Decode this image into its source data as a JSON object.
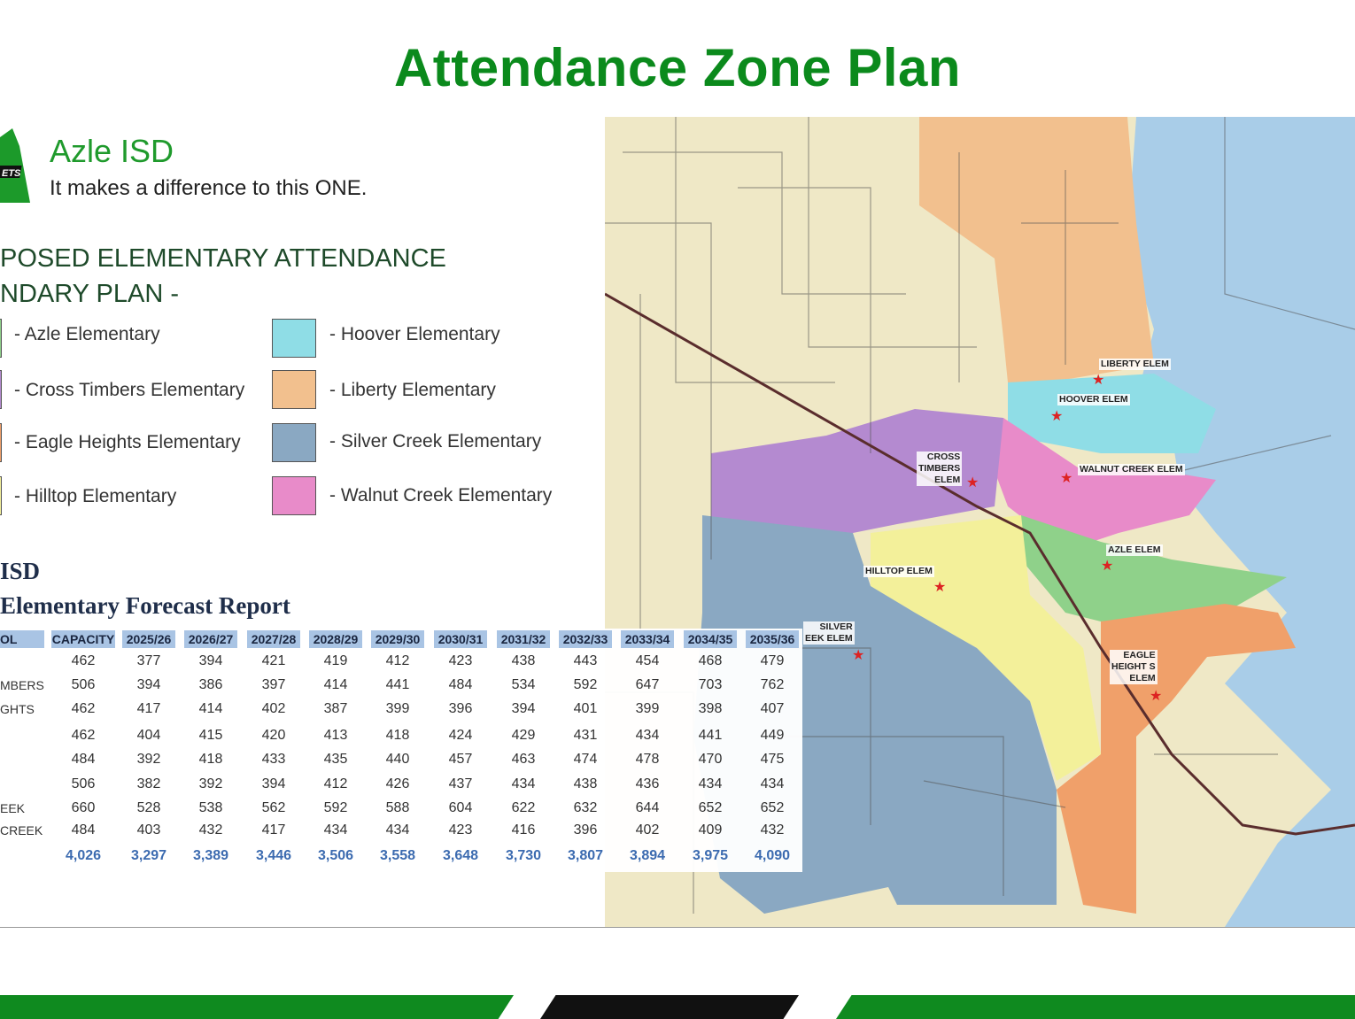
{
  "title": "Attendance Zone Plan",
  "brand": {
    "name": "Azle ISD",
    "tagline": "It makes a difference to this ONE.",
    "logo_text": "ETS"
  },
  "plan_heading": [
    "POSED ELEMENTARY ATTENDANCE",
    "NDARY PLAN -"
  ],
  "legend": [
    {
      "label": "- Azle Elementary",
      "color": "#8fd18a"
    },
    {
      "label": "- Cross Timbers Elementary",
      "color": "#b48ad0"
    },
    {
      "label": "- Eagle Heights Elementary",
      "color": "#f0a06a"
    },
    {
      "label": "- Hilltop Elementary",
      "color": "#f3f09a"
    },
    {
      "label": "- Hoover Elementary",
      "color": "#8fdde6"
    },
    {
      "label": "- Liberty Elementary",
      "color": "#f2c08e"
    },
    {
      "label": "- Silver Creek Elementary",
      "color": "#8aa8c2"
    },
    {
      "label": "- Walnut Creek Elementary",
      "color": "#e88bc9"
    }
  ],
  "report": {
    "line1": "ISD",
    "line2": "Elementary Forecast Report"
  },
  "table": {
    "headers": [
      "OL",
      "CAPACITY",
      "2025/26",
      "2026/27",
      "2027/28",
      "2028/29",
      "2029/30",
      "2030/31",
      "2031/32",
      "2032/33",
      "2033/34",
      "2034/35",
      "2035/36"
    ],
    "rows": [
      {
        "label": "",
        "values": [
          "462",
          "377",
          "394",
          "421",
          "419",
          "412",
          "423",
          "438",
          "443",
          "454",
          "468",
          "479"
        ]
      },
      {
        "label": "MBERS",
        "values": [
          "506",
          "394",
          "386",
          "397",
          "414",
          "441",
          "484",
          "534",
          "592",
          "647",
          "703",
          "762"
        ]
      },
      {
        "label": "GHTS",
        "values": [
          "462",
          "417",
          "414",
          "402",
          "387",
          "399",
          "396",
          "394",
          "401",
          "399",
          "398",
          "407"
        ]
      },
      {
        "label": "",
        "values": [
          "462",
          "404",
          "415",
          "420",
          "413",
          "418",
          "424",
          "429",
          "431",
          "434",
          "441",
          "449"
        ]
      },
      {
        "label": "",
        "values": [
          "484",
          "392",
          "418",
          "433",
          "435",
          "440",
          "457",
          "463",
          "474",
          "478",
          "470",
          "475"
        ]
      },
      {
        "label": "",
        "values": [
          "506",
          "382",
          "392",
          "394",
          "412",
          "426",
          "437",
          "434",
          "438",
          "436",
          "434",
          "434"
        ]
      },
      {
        "label": "EEK",
        "values": [
          "660",
          "528",
          "538",
          "562",
          "592",
          "588",
          "604",
          "622",
          "632",
          "644",
          "652",
          "652"
        ]
      },
      {
        "label": "CREEK",
        "values": [
          "484",
          "403",
          "432",
          "417",
          "434",
          "434",
          "423",
          "416",
          "396",
          "402",
          "409",
          "432"
        ]
      }
    ],
    "totals": [
      "4,026",
      "3,297",
      "3,389",
      "3,446",
      "3,506",
      "3,558",
      "3,648",
      "3,730",
      "3,807",
      "3,894",
      "3,975",
      "4,090"
    ]
  },
  "map_labels": {
    "liberty": "LIBERTY ELEM",
    "hoover": "HOOVER ELEM",
    "cross_timbers": [
      "CROSS",
      "TIMBERS",
      "ELEM"
    ],
    "walnut_creek": "WALNUT CREEK ELEM",
    "azle": "AZLE ELEM",
    "hilltop": "HILLTOP ELEM",
    "silver_creek": [
      "SILVER",
      "EEK ELEM"
    ],
    "eagle_heights": [
      "EAGLE",
      "HEIGHT S",
      "ELEM"
    ]
  },
  "colors": {
    "title": "#0b8a1c",
    "bar_green": "#0f8a1f",
    "bar_black": "#111111"
  }
}
